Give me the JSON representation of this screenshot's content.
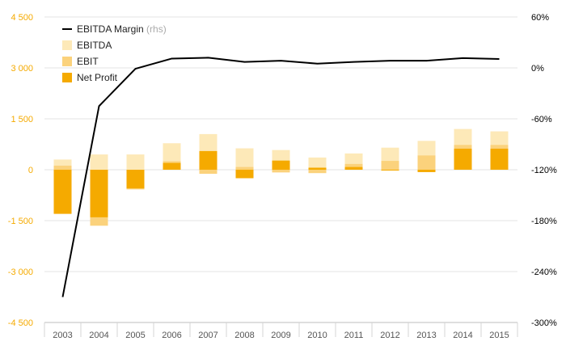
{
  "chart_data": {
    "type": "bar",
    "categories": [
      "2003",
      "2004",
      "2005",
      "2006",
      "2007",
      "2008",
      "2009",
      "2010",
      "2011",
      "2012",
      "2013",
      "2014",
      "2015"
    ],
    "series": [
      {
        "name": "EBITDA",
        "kind": "bar",
        "axis": "left",
        "color": "#fde9b8",
        "values": [
          300,
          450,
          450,
          780,
          1050,
          630,
          580,
          360,
          480,
          650,
          850,
          1200,
          1130
        ]
      },
      {
        "name": "EBIT",
        "kind": "bar",
        "axis": "left",
        "color": "#fbd27c",
        "values": [
          120,
          -1650,
          -580,
          250,
          -120,
          80,
          -80,
          -100,
          170,
          260,
          420,
          730,
          730
        ]
      },
      {
        "name": "Net Profit",
        "kind": "bar",
        "axis": "left",
        "color": "#f5aa00",
        "values": [
          -1300,
          -1400,
          -550,
          200,
          550,
          -250,
          270,
          60,
          80,
          -20,
          -70,
          620,
          620
        ]
      },
      {
        "name": "EBITDA Margin",
        "name_suffix": "(rhs)",
        "kind": "line",
        "axis": "right",
        "color": "#000000",
        "values": [
          -270,
          -45,
          -1,
          11,
          12,
          7,
          8.5,
          5,
          7,
          8.5,
          8.5,
          11.5,
          10.5
        ]
      }
    ],
    "y_left": {
      "ticks": [
        "4 500",
        "3 000",
        "1 500",
        "0",
        "-1 500",
        "-3 000",
        "-4 500"
      ],
      "min": -4500,
      "max": 4500
    },
    "y_right": {
      "ticks": [
        "60%",
        "0%",
        "-60%",
        "-120%",
        "-180%",
        "-240%",
        "-300%"
      ],
      "min": -300,
      "max": 60
    },
    "legend_position": "top-left",
    "grid": true,
    "colors": {
      "left_axis_text": "#f5aa00",
      "right_axis_text": "#000000",
      "grid": "#e3e3e3",
      "x_text": "#555555"
    }
  }
}
